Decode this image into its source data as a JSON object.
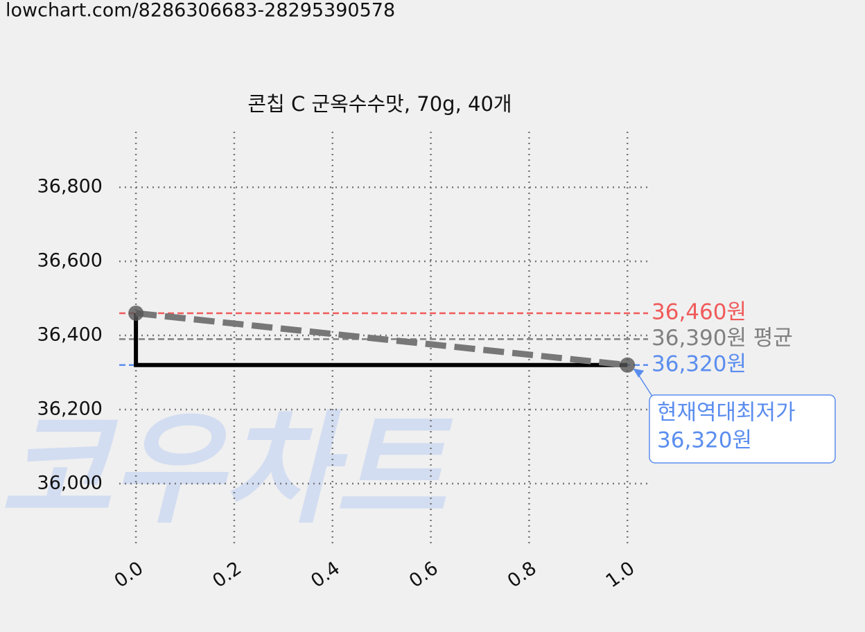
{
  "url": "lowchart.com/8286306683-28295390578",
  "chart_data": {
    "type": "line",
    "title": "콘칩 C 군옥수수맛, 70g, 40개",
    "watermark": "코우차트",
    "x": [
      0,
      1
    ],
    "series": [
      {
        "color": "#777777",
        "values": [
          36460,
          36320
        ]
      }
    ],
    "step_color": "#000000",
    "xlim": [
      -0.034,
      1.042
    ],
    "ylim": [
      35837,
      36950
    ],
    "xticks": [
      {
        "value": 0,
        "label": "0.0"
      },
      {
        "value": 0.2,
        "label": "0.2"
      },
      {
        "value": 0.4,
        "label": "0.4"
      },
      {
        "value": 0.6,
        "label": "0.6"
      },
      {
        "value": 0.8,
        "label": "0.8"
      },
      {
        "value": 1,
        "label": "1.0"
      }
    ],
    "yticks": [
      {
        "value": 36000,
        "label": "36,000"
      },
      {
        "value": 36200,
        "label": "36,200"
      },
      {
        "value": 36400,
        "label": "36,400"
      },
      {
        "value": 36600,
        "label": "36,600"
      },
      {
        "value": 36800,
        "label": "36,800"
      }
    ],
    "grid": true,
    "ref_lines": [
      {
        "value": 36460,
        "label": "36,460원",
        "color": "#f05a5a"
      },
      {
        "value": 36390,
        "label": "36,390원 평균",
        "color": "#808080"
      },
      {
        "value": 36320,
        "label": "36,320원",
        "color": "#5b8def"
      }
    ],
    "annotation": {
      "lines": [
        "현재역대최저가",
        "36,320원"
      ],
      "x": 1,
      "y": 36320,
      "color": "#5b8def"
    }
  }
}
